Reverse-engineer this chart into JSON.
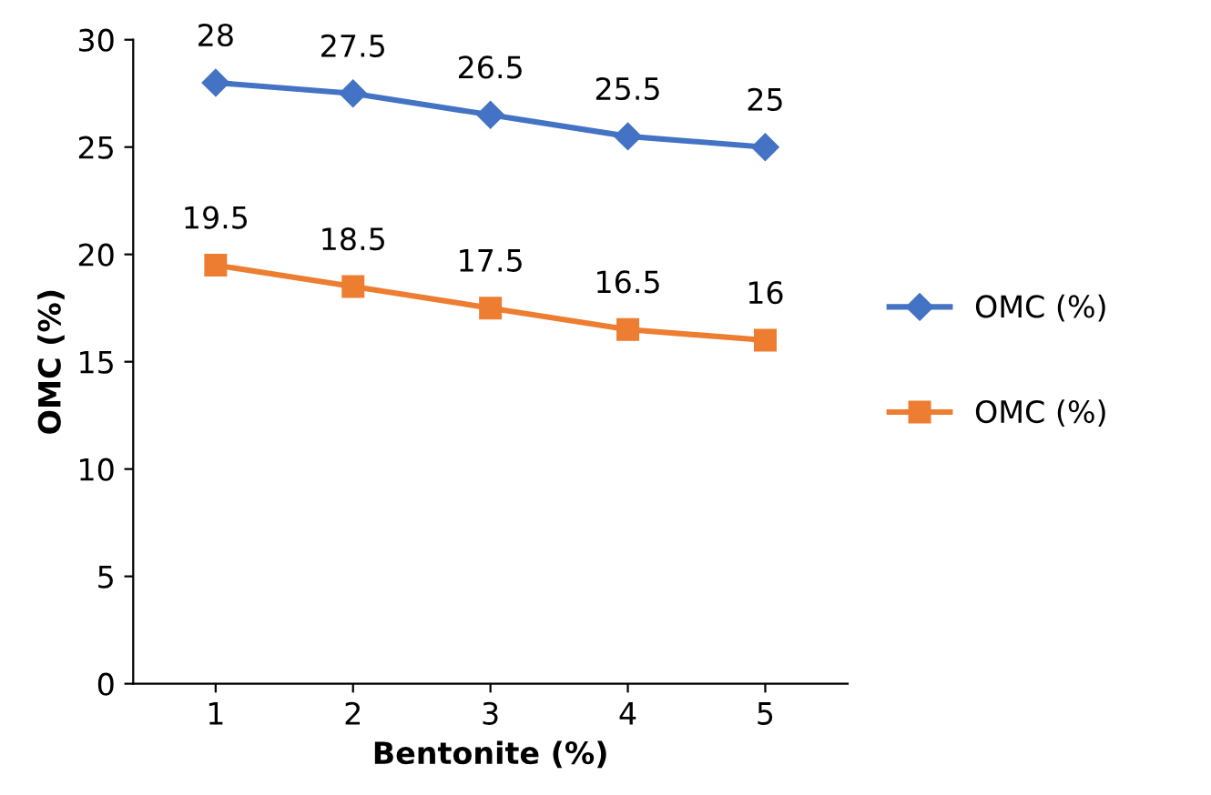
{
  "chart_data": {
    "type": "line",
    "xlabel": "Bentonite (%)",
    "ylabel": "OMC (%)",
    "categories": [
      "1",
      "2",
      "3",
      "4",
      "5"
    ],
    "series": [
      {
        "name": "OMC (%)",
        "color": "#4472c4",
        "marker": "diamond",
        "values": [
          28,
          27.5,
          26.5,
          25.5,
          25
        ]
      },
      {
        "name": "OMC (%)",
        "color": "#ed7d31",
        "marker": "square",
        "values": [
          19.5,
          18.5,
          17.5,
          16.5,
          16
        ]
      }
    ],
    "ylim": [
      0,
      30
    ],
    "yticks": [
      0,
      5,
      10,
      15,
      20,
      25,
      30
    ],
    "grid": false,
    "legend": "right",
    "data_labels": true,
    "line_style": "solid"
  }
}
